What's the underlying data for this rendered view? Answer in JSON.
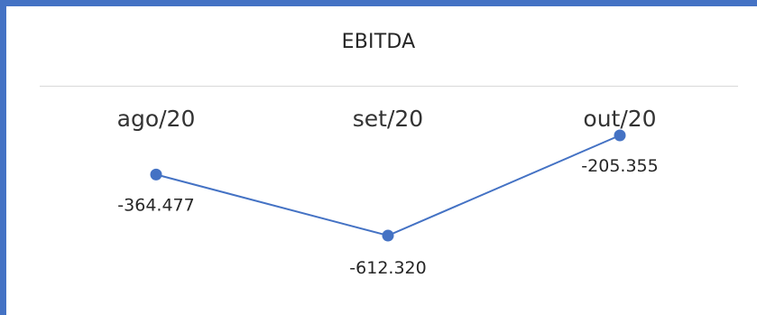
{
  "chart_data": {
    "type": "line",
    "title": "EBITDA",
    "categories": [
      "ago/20",
      "set/20",
      "out/20"
    ],
    "series": [
      {
        "values": [
          -364.477,
          -612.32,
          -205.355
        ],
        "value_labels": [
          "-364.477",
          "-612.320",
          "-205.355"
        ]
      }
    ],
    "grid": false,
    "legend": "none",
    "colors": {
      "line": "#4472c4",
      "marker": "#4472c4",
      "frame": "#4472c4"
    }
  }
}
